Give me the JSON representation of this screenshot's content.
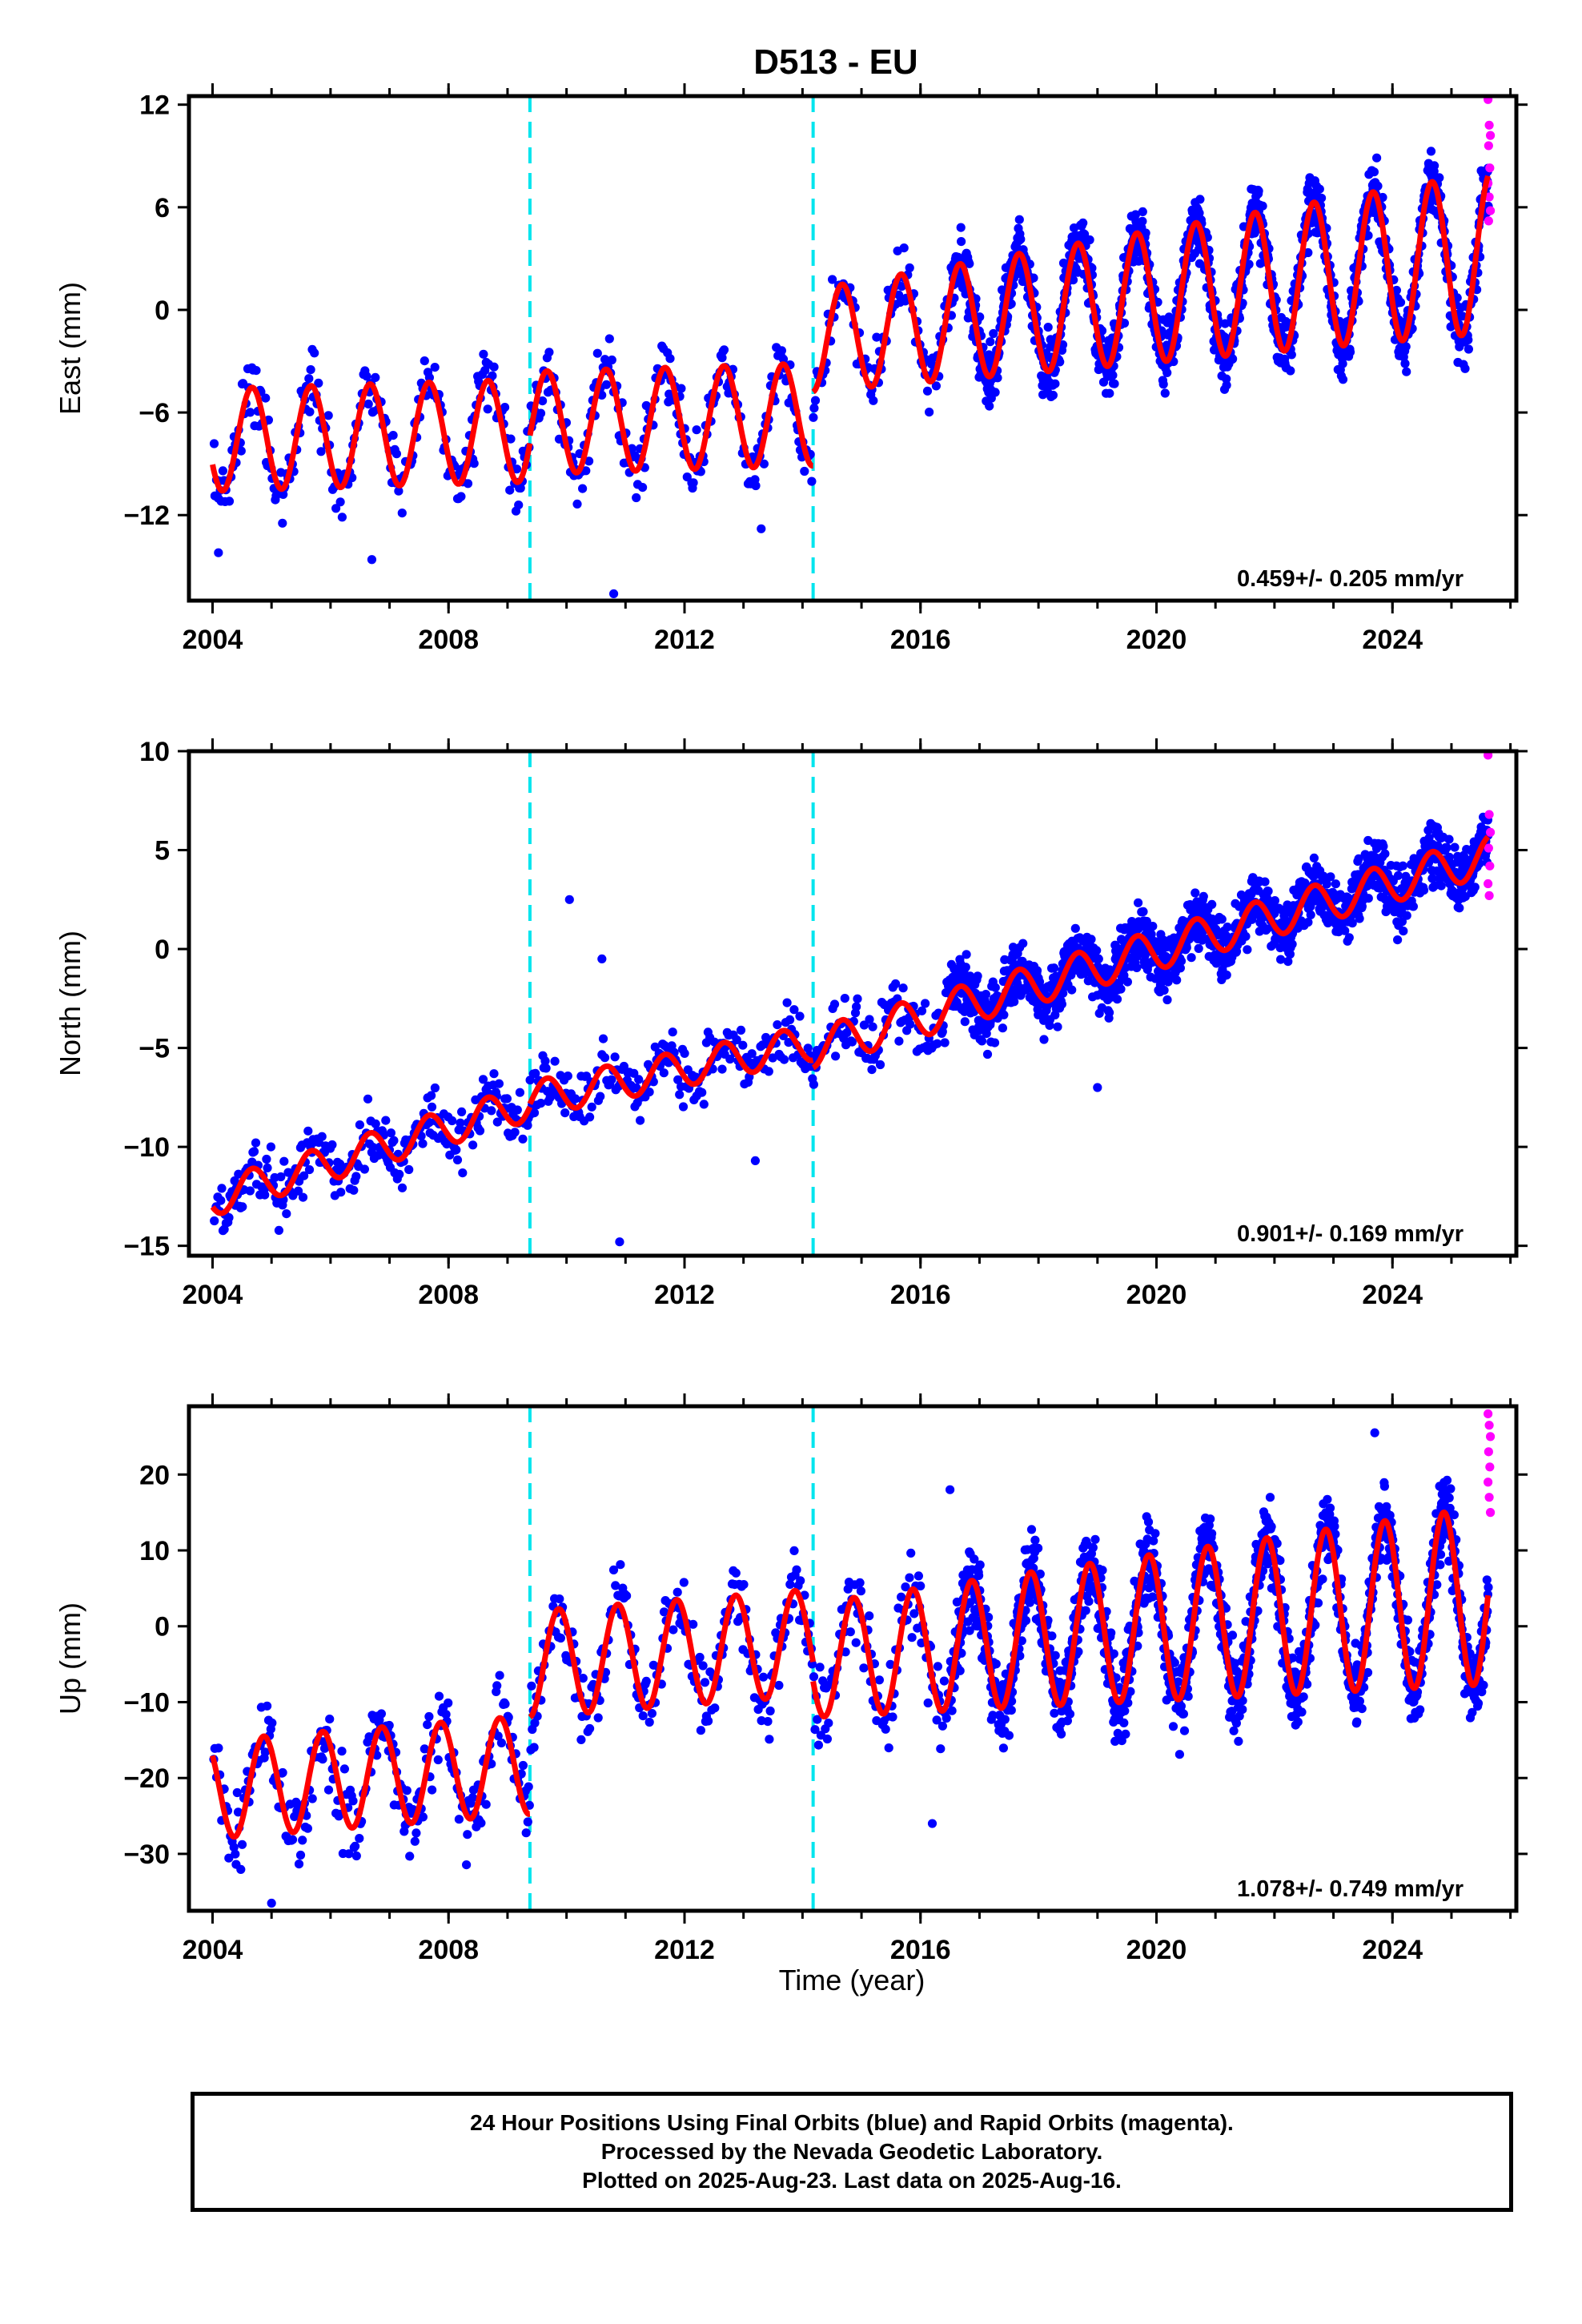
{
  "figure": {
    "title": "D513 - EU",
    "time_label": "Time (year)",
    "caption": [
      "24 Hour Positions Using Final Orbits (blue) and Rapid Orbits (magenta).",
      "Processed by the Nevada Geodetic Laboratory.",
      "Plotted on 2025-Aug-23. Last data on 2025-Aug-16."
    ]
  },
  "colors": {
    "final_orbits": "#0000ff",
    "rapid_orbits": "#ff00ff",
    "model_fit": "#ff0000",
    "event_lines": "#00e5ee",
    "frame": "#000000"
  },
  "chart_data": [
    {
      "type": "scatter",
      "component": "east",
      "ylabel": "East (mm)",
      "xlim": [
        2003.6,
        2026.1
      ],
      "ylim": [
        -17,
        12.5
      ],
      "yticks": [
        -12,
        -6,
        0,
        6,
        12
      ],
      "ytick_labels": [
        "−12",
        "−6",
        "0",
        "6",
        "12"
      ],
      "xticks": [
        2004,
        2008,
        2012,
        2016,
        2020,
        2024
      ],
      "xtick_labels": [
        "2004",
        "2008",
        "2012",
        "2016",
        "2020",
        "2024"
      ],
      "velocity_label": "0.459+/- 0.205 mm/yr",
      "event_lines": [
        2009.38,
        2014.18
      ],
      "model": {
        "segments": [
          {
            "start": 2004.0,
            "end": 2009.38,
            "offset": -7.6,
            "trend": 0.1,
            "amplitude": 3.0,
            "phase": 0.42
          },
          {
            "start": 2009.38,
            "end": 2014.18,
            "offset": -6.6,
            "trend": 0.1,
            "amplitude": 3.0,
            "phase": 0.42
          },
          {
            "start": 2014.18,
            "end": 2025.62,
            "offset": -1.8,
            "trend": 0.45,
            "amplitude": 3.0,
            "phase": 0.42,
            "amplitude_growth": 0.05
          }
        ],
        "noise": 1.6,
        "spikes": [
          [
            2010.8,
            -16.6
          ],
          [
            2004.1,
            -14.2
          ],
          [
            2006.7,
            -14.6
          ],
          [
            2013.3,
            -12.8
          ]
        ]
      },
      "rapid_points": [
        [
          2025.62,
          12.3
        ],
        [
          2025.64,
          10.8
        ],
        [
          2025.66,
          10.2
        ],
        [
          2025.63,
          9.6
        ],
        [
          2025.65,
          8.3
        ],
        [
          2025.62,
          7.4
        ],
        [
          2025.64,
          6.6
        ],
        [
          2025.66,
          5.8
        ],
        [
          2025.63,
          5.2
        ]
      ]
    },
    {
      "type": "scatter",
      "component": "north",
      "ylabel": "North (mm)",
      "xlim": [
        2003.6,
        2026.1
      ],
      "ylim": [
        -15.5,
        10
      ],
      "yticks": [
        -15,
        -10,
        -5,
        0,
        5,
        10
      ],
      "ytick_labels": [
        "−15",
        "−10",
        "−5",
        "0",
        "5",
        "10"
      ],
      "xticks": [
        2004,
        2008,
        2012,
        2016,
        2020,
        2024
      ],
      "xtick_labels": [
        "2004",
        "2008",
        "2012",
        "2016",
        "2020",
        "2024"
      ],
      "velocity_label": "0.901+/- 0.169 mm/yr",
      "event_lines": [
        2009.38,
        2014.18
      ],
      "model": {
        "segments": [
          {
            "start": 2004.0,
            "end": 2009.38,
            "offset": -12.6,
            "trend": 0.9,
            "amplitude": 0.9,
            "phase": 0.42
          },
          {
            "start": 2009.38,
            "end": 2014.18,
            "offset": -7.6,
            "trend": 0.6,
            "amplitude": 0.9,
            "phase": 0.42
          },
          {
            "start": 2014.18,
            "end": 2025.62,
            "offset": -5.0,
            "trend": 0.85,
            "amplitude": 1.0,
            "phase": 0.42
          }
        ],
        "noise": 1.25,
        "spikes": [
          [
            2010.05,
            2.5
          ],
          [
            2010.9,
            -14.8
          ],
          [
            2010.6,
            -0.5
          ],
          [
            2013.2,
            -10.7
          ],
          [
            2019.0,
            -7.0
          ]
        ]
      },
      "rapid_points": [
        [
          2025.62,
          9.8
        ],
        [
          2025.64,
          6.8
        ],
        [
          2025.66,
          5.9
        ],
        [
          2025.63,
          5.1
        ],
        [
          2025.65,
          4.2
        ],
        [
          2025.62,
          3.3
        ],
        [
          2025.64,
          2.7
        ]
      ]
    },
    {
      "type": "scatter",
      "component": "up",
      "ylabel": "Up (mm)",
      "xlim": [
        2003.6,
        2026.1
      ],
      "ylim": [
        -37.5,
        29
      ],
      "yticks": [
        -30,
        -20,
        -10,
        0,
        10,
        20
      ],
      "ytick_labels": [
        "−30",
        "−20",
        "−10",
        "0",
        "10",
        "20"
      ],
      "xticks": [
        2004,
        2008,
        2012,
        2016,
        2020,
        2024
      ],
      "xtick_labels": [
        "2004",
        "2008",
        "2012",
        "2016",
        "2020",
        "2024"
      ],
      "velocity_label": "1.078+/- 0.749 mm/yr",
      "event_lines": [
        2009.38,
        2014.18
      ],
      "model": {
        "segments": [
          {
            "start": 2004.0,
            "end": 2009.38,
            "offset": -21.5,
            "trend": 0.6,
            "amplitude": 6.5,
            "phase": 0.62
          },
          {
            "start": 2009.38,
            "end": 2014.18,
            "offset": -5.0,
            "trend": 0.6,
            "amplitude": 7.0,
            "phase": 0.62
          },
          {
            "start": 2014.18,
            "end": 2025.62,
            "offset": -4.5,
            "trend": 0.75,
            "amplitude": 7.5,
            "phase": 0.62,
            "amplitude_growth": 0.05
          }
        ],
        "noise": 4.5,
        "spikes": [
          [
            2005.0,
            -36.5
          ],
          [
            2016.2,
            -26.0
          ],
          [
            2023.7,
            25.5
          ],
          [
            2016.5,
            18.0
          ]
        ]
      },
      "rapid_points": [
        [
          2025.62,
          28.0
        ],
        [
          2025.64,
          26.5
        ],
        [
          2025.66,
          25.0
        ],
        [
          2025.63,
          23.0
        ],
        [
          2025.65,
          21.0
        ],
        [
          2025.62,
          19.0
        ],
        [
          2025.64,
          17.0
        ],
        [
          2025.66,
          15.0
        ]
      ]
    }
  ]
}
